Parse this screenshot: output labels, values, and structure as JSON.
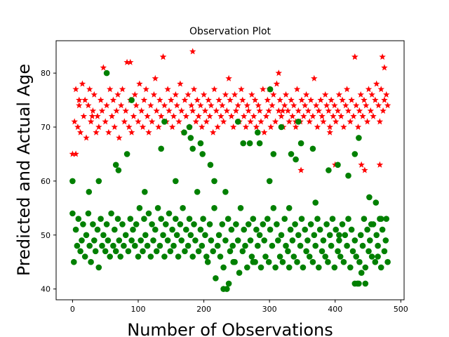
{
  "chart_data": {
    "type": "scatter",
    "title": "Observation Plot",
    "xlabel": "Number of Observations",
    "ylabel": "Predicted and Actual Age",
    "xlim": [
      -25,
      505
    ],
    "ylim": [
      38,
      86
    ],
    "xticks": [
      0,
      100,
      200,
      300,
      400,
      500
    ],
    "yticks": [
      40,
      50,
      60,
      70,
      80
    ],
    "grid": false,
    "legend": "none",
    "series": [
      {
        "marker": "star",
        "color": "#ff0000",
        "x": [
          0,
          3,
          5,
          8,
          10,
          12,
          15,
          17,
          19,
          21,
          24,
          26,
          28,
          31,
          33,
          36,
          38,
          40,
          43,
          45,
          47,
          50,
          52,
          55,
          57,
          60,
          62,
          64,
          67,
          69,
          71,
          74,
          76,
          79,
          81,
          83,
          86,
          88,
          90,
          93,
          95,
          97,
          100,
          102,
          105,
          107,
          109,
          112,
          114,
          116,
          119,
          121,
          124,
          126,
          128,
          131,
          133,
          135,
          138,
          140,
          143,
          145,
          147,
          150,
          152,
          154,
          157,
          159,
          162,
          164,
          166,
          169,
          171,
          173,
          176,
          178,
          181,
          183,
          185,
          188,
          190,
          192,
          195,
          197,
          200,
          202,
          204,
          207,
          209,
          211,
          214,
          216,
          219,
          221,
          223,
          226,
          228,
          230,
          233,
          235,
          238,
          240,
          242,
          245,
          247,
          249,
          252,
          254,
          257,
          259,
          261,
          264,
          266,
          268,
          271,
          273,
          276,
          278,
          280,
          283,
          285,
          287,
          290,
          292,
          295,
          297,
          299,
          302,
          304,
          306,
          309,
          311,
          314,
          316,
          318,
          321,
          323,
          325,
          328,
          330,
          333,
          335,
          337,
          340,
          342,
          344,
          347,
          349,
          352,
          354,
          356,
          359,
          361,
          363,
          366,
          368,
          371,
          373,
          375,
          378,
          380,
          382,
          385,
          387,
          390,
          392,
          394,
          397,
          399,
          401,
          404,
          406,
          409,
          411,
          413,
          416,
          418,
          420,
          423,
          425,
          428,
          430,
          432,
          435,
          437,
          439,
          442,
          444,
          447,
          449,
          451,
          454,
          456,
          458,
          461,
          463,
          466,
          468,
          470,
          473,
          475,
          478,
          480
        ],
        "y": [
          65,
          71,
          77,
          70,
          74,
          69,
          78,
          72,
          75,
          68,
          74,
          77,
          71,
          73,
          76,
          69,
          72,
          70,
          75,
          73,
          81,
          71,
          74,
          69,
          77,
          72,
          75,
          70,
          73,
          76,
          68,
          74,
          77,
          71,
          73,
          82,
          70,
          75,
          69,
          72,
          76,
          74,
          71,
          78,
          73,
          70,
          75,
          77,
          72,
          69,
          74,
          71,
          76,
          79,
          73,
          70,
          75,
          72,
          83,
          74,
          71,
          77,
          73,
          75,
          70,
          72,
          76,
          74,
          71,
          78,
          73,
          69,
          75,
          72,
          76,
          70,
          74,
          73,
          77,
          71,
          75,
          72,
          74,
          70,
          76,
          73,
          71,
          75,
          72,
          74,
          69,
          77,
          73,
          70,
          75,
          72,
          74,
          71,
          76,
          73,
          79,
          75,
          72,
          70,
          76,
          73,
          74,
          71,
          77,
          75,
          72,
          70,
          74,
          73,
          71,
          76,
          72,
          75,
          70,
          74,
          73,
          71,
          77,
          69,
          72,
          75,
          73,
          70,
          74,
          76,
          71,
          78,
          73,
          75,
          72,
          70,
          74,
          76,
          73,
          71,
          75,
          72,
          74,
          70,
          77,
          73,
          71,
          75,
          72,
          74,
          76,
          73,
          71,
          75,
          72,
          79,
          74,
          70,
          73,
          75,
          72,
          71,
          76,
          74,
          73,
          70,
          75,
          72,
          74,
          71,
          73,
          76,
          72,
          75,
          70,
          74,
          77,
          73,
          71,
          75,
          72,
          83,
          74,
          70,
          73,
          76,
          72,
          75,
          74,
          71,
          77,
          73,
          76,
          72,
          75,
          78,
          74,
          71,
          77,
          73,
          75,
          76,
          74
        ],
        "extra_points": [
          [
            5,
            65
          ],
          [
            10,
            75
          ],
          [
            30,
            72
          ],
          [
            88,
            82
          ],
          [
            138,
            83
          ],
          [
            183,
            84
          ],
          [
            300,
            77
          ],
          [
            314,
            80
          ],
          [
            320,
            73
          ],
          [
            340,
            71
          ],
          [
            392,
            69
          ],
          [
            430,
            83
          ],
          [
            440,
            63
          ],
          [
            472,
            83
          ],
          [
            468,
            63
          ],
          [
            475,
            81
          ],
          [
            445,
            62
          ],
          [
            348,
            62
          ],
          [
            400,
            63
          ]
        ]
      },
      {
        "marker": "circle",
        "color": "#008000",
        "x": [
          0,
          2,
          5,
          7,
          9,
          12,
          14,
          16,
          19,
          21,
          24,
          26,
          28,
          31,
          33,
          35,
          38,
          40,
          43,
          45,
          47,
          50,
          52,
          54,
          57,
          59,
          62,
          64,
          66,
          69,
          71,
          73,
          76,
          78,
          81,
          83,
          85,
          88,
          90,
          92,
          95,
          97,
          100,
          102,
          104,
          107,
          109,
          111,
          114,
          116,
          119,
          121,
          123,
          126,
          128,
          130,
          133,
          135,
          138,
          140,
          142,
          145,
          147,
          149,
          152,
          154,
          157,
          159,
          161,
          164,
          166,
          168,
          171,
          173,
          176,
          178,
          180,
          183,
          185,
          187,
          190,
          192,
          195,
          197,
          199,
          202,
          204,
          206,
          209,
          211,
          214,
          216,
          218,
          221,
          223,
          225,
          228,
          230,
          233,
          235,
          237,
          240,
          242,
          244,
          247,
          249,
          252,
          254,
          256,
          259,
          261,
          263,
          266,
          268,
          271,
          273,
          275,
          278,
          280,
          282,
          285,
          287,
          290,
          292,
          294,
          297,
          299,
          301,
          304,
          306,
          309,
          311,
          313,
          316,
          318,
          320,
          323,
          325,
          328,
          330,
          332,
          335,
          337,
          339,
          342,
          344,
          347,
          349,
          351,
          354,
          356,
          358,
          361,
          363,
          366,
          368,
          370,
          373,
          375,
          377,
          380,
          382,
          385,
          387,
          389,
          392,
          394,
          396,
          399,
          401,
          404,
          406,
          408,
          411,
          413,
          415,
          418,
          420,
          423,
          425,
          427,
          430,
          432,
          434,
          437,
          439,
          442,
          444,
          446,
          449,
          451,
          453,
          456,
          458,
          461,
          463,
          465,
          468,
          470,
          472,
          475,
          477,
          480
        ],
        "y": [
          54,
          45,
          51,
          48,
          53,
          47,
          49,
          52,
          46,
          50,
          54,
          48,
          45,
          52,
          49,
          47,
          51,
          44,
          53,
          48,
          50,
          47,
          52,
          49,
          46,
          54,
          48,
          51,
          47,
          53,
          49,
          46,
          52,
          48,
          50,
          65,
          47,
          53,
          49,
          51,
          48,
          52,
          46,
          55,
          49,
          47,
          53,
          50,
          48,
          54,
          46,
          52,
          49,
          51,
          47,
          55,
          48,
          53,
          50,
          46,
          52,
          49,
          54,
          47,
          51,
          48,
          53,
          50,
          46,
          52,
          49,
          55,
          47,
          51,
          48,
          53,
          50,
          46,
          52,
          49,
          58,
          47,
          51,
          48,
          53,
          50,
          46,
          45,
          52,
          49,
          47,
          55,
          42,
          48,
          50,
          46,
          52,
          44,
          49,
          40,
          53,
          47,
          51,
          48,
          45,
          52,
          49,
          43,
          55,
          47,
          51,
          48,
          44,
          52,
          49,
          46,
          53,
          45,
          51,
          48,
          50,
          44,
          52,
          49,
          46,
          53,
          45,
          51,
          48,
          55,
          44,
          52,
          49,
          46,
          50,
          45,
          53,
          48,
          47,
          44,
          51,
          49,
          46,
          52,
          45,
          50,
          48,
          53,
          44,
          51,
          47,
          49,
          46,
          52,
          45,
          50,
          48,
          53,
          44,
          51,
          47,
          49,
          46,
          52,
          45,
          50,
          48,
          53,
          44,
          51,
          47,
          49,
          46,
          52,
          45,
          50,
          48,
          53,
          44,
          51,
          47,
          49,
          46,
          41,
          45,
          50,
          48,
          53,
          44,
          51,
          47,
          49,
          46,
          52,
          45,
          50,
          48,
          53,
          44,
          51,
          47,
          49,
          45
        ],
        "extra_points": [
          [
            52,
            80
          ],
          [
            0,
            60
          ],
          [
            66,
            63
          ],
          [
            90,
            75
          ],
          [
            140,
            71
          ],
          [
            135,
            66
          ],
          [
            157,
            60
          ],
          [
            170,
            69
          ],
          [
            178,
            70
          ],
          [
            180,
            68
          ],
          [
            183,
            66
          ],
          [
            195,
            67
          ],
          [
            198,
            65
          ],
          [
            210,
            63
          ],
          [
            216,
            60
          ],
          [
            233,
            58
          ],
          [
            252,
            71
          ],
          [
            260,
            67
          ],
          [
            270,
            67
          ],
          [
            282,
            69
          ],
          [
            285,
            67
          ],
          [
            301,
            77
          ],
          [
            306,
            65
          ],
          [
            318,
            70
          ],
          [
            333,
            65
          ],
          [
            340,
            64
          ],
          [
            344,
            71
          ],
          [
            348,
            67
          ],
          [
            366,
            66
          ],
          [
            390,
            62
          ],
          [
            404,
            63
          ],
          [
            420,
            61
          ],
          [
            430,
            65
          ],
          [
            436,
            68
          ],
          [
            452,
            57
          ],
          [
            462,
            56
          ],
          [
            25,
            58
          ],
          [
            40,
            60
          ],
          [
            70,
            62
          ],
          [
            110,
            58
          ],
          [
            230,
            40
          ],
          [
            238,
            41
          ],
          [
            245,
            45
          ],
          [
            275,
            45
          ],
          [
            300,
            60
          ],
          [
            330,
            55
          ],
          [
            370,
            56
          ],
          [
            406,
            50
          ],
          [
            430,
            41
          ],
          [
            436,
            41
          ],
          [
            440,
            43
          ],
          [
            446,
            41
          ],
          [
            455,
            52
          ],
          [
            465,
            46
          ],
          [
            470,
            53
          ],
          [
            478,
            53
          ]
        ]
      }
    ]
  }
}
